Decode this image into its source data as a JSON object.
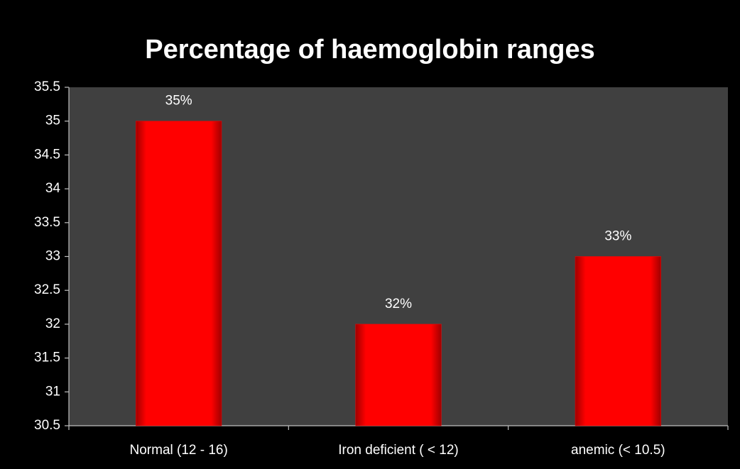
{
  "chart_data": {
    "type": "bar",
    "title": "Percentage of haemoglobin ranges",
    "categories": [
      "Normal (12 - 16)",
      "Iron deficient ( < 12)",
      "anemic (< 10.5)"
    ],
    "values": [
      35,
      32,
      33
    ],
    "value_labels": [
      "35%",
      "32%",
      "33%"
    ],
    "color": "#ff0000",
    "ylim": [
      30.5,
      35.5
    ],
    "yticks": [
      30.5,
      31,
      31.5,
      32,
      32.5,
      33,
      33.5,
      34,
      34.5,
      35,
      35.5
    ]
  }
}
